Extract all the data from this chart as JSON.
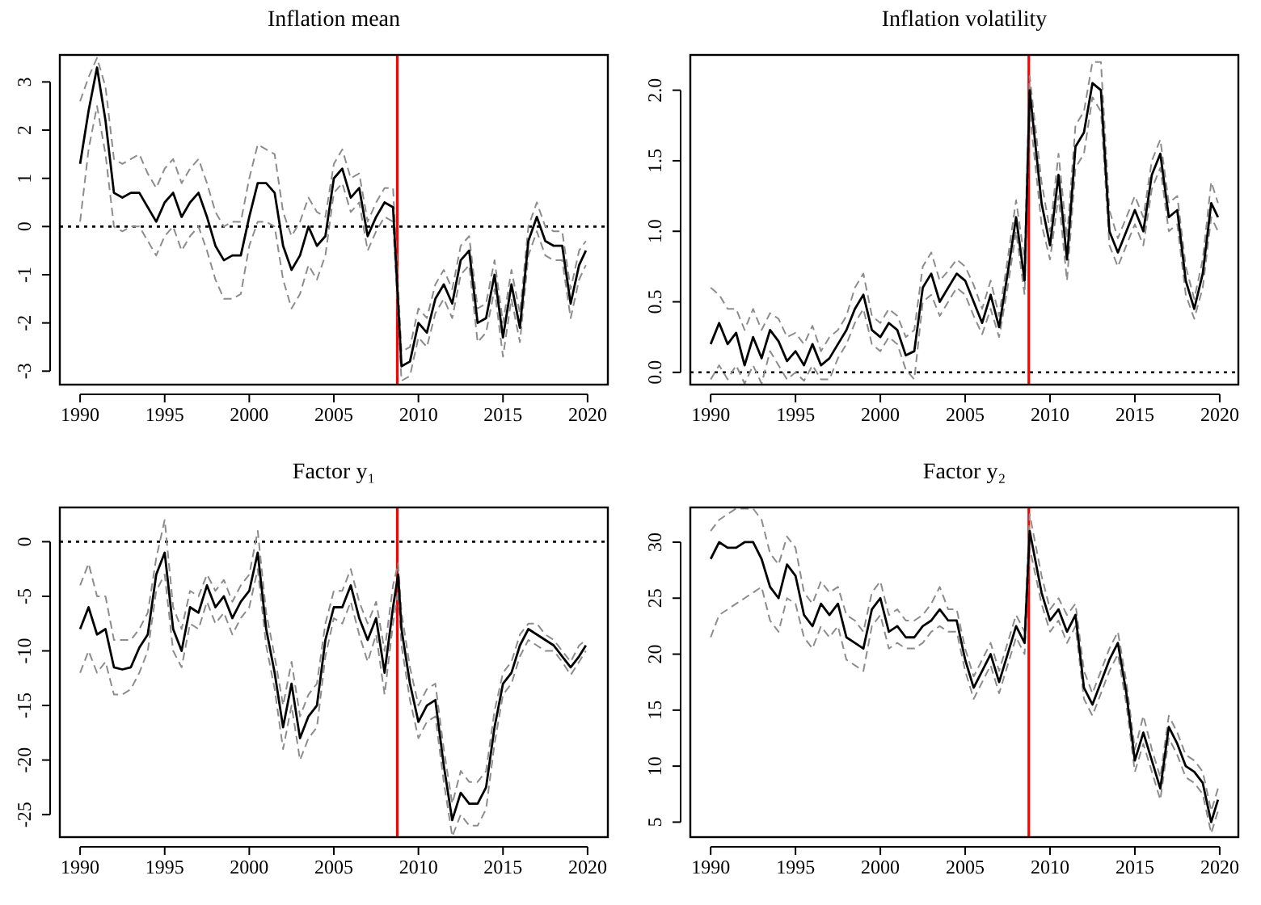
{
  "chart_data": [
    {
      "type": "line",
      "title": "Inflation mean",
      "xlim": [
        1988.8,
        2021.2
      ],
      "xticks": [
        1990,
        1995,
        2000,
        2005,
        2010,
        2015,
        2020
      ],
      "ylim": [
        -3.28,
        3.56
      ],
      "yticks": [
        -3,
        -2,
        -1,
        0,
        1,
        2,
        3
      ],
      "x": [
        1990,
        1990.5,
        1991,
        1991.5,
        1992,
        1992.5,
        1993,
        1993.5,
        1994,
        1994.5,
        1995,
        1995.5,
        1996,
        1996.5,
        1997,
        1997.5,
        1998,
        1998.5,
        1999,
        1999.5,
        2000,
        2000.5,
        2001,
        2001.5,
        2002,
        2002.5,
        2003,
        2003.5,
        2004,
        2004.5,
        2005,
        2005.5,
        2006,
        2006.5,
        2007,
        2007.5,
        2008,
        2008.5,
        2009,
        2009.5,
        2010,
        2010.5,
        2011,
        2011.5,
        2012,
        2012.5,
        2013,
        2013.5,
        2014,
        2014.5,
        2015,
        2015.5,
        2016,
        2016.5,
        2017,
        2017.5,
        2018,
        2018.5,
        2019,
        2019.5,
        2019.9
      ],
      "series": [
        {
          "color": "#8c8c8c",
          "line_style": "dashed",
          "values": [
            0.1,
            1.6,
            2.5,
            1.5,
            0.0,
            -0.1,
            0.0,
            0.0,
            -0.3,
            -0.6,
            -0.2,
            0.0,
            -0.5,
            -0.2,
            0.0,
            -0.5,
            -1.1,
            -1.5,
            -1.5,
            -1.4,
            -0.4,
            0.1,
            0.1,
            0.0,
            -1.1,
            -1.7,
            -1.4,
            -0.8,
            -1.1,
            -0.6,
            0.7,
            0.9,
            0.3,
            0.5,
            -0.5,
            -0.1,
            0.2,
            0.1,
            -3.2,
            -3.1,
            -2.3,
            -2.5,
            -1.8,
            -1.5,
            -1.9,
            -1.0,
            -0.8,
            -2.4,
            -2.2,
            -1.3,
            -2.7,
            -1.5,
            -2.4,
            -0.6,
            -0.1,
            -0.6,
            -0.7,
            -0.7,
            -1.9,
            -1.1,
            -0.8
          ]
        },
        {
          "color": "#8c8c8c",
          "line_style": "dashed",
          "values": [
            2.6,
            3.1,
            3.5,
            2.9,
            1.4,
            1.3,
            1.4,
            1.5,
            1.1,
            0.8,
            1.2,
            1.4,
            0.9,
            1.2,
            1.4,
            0.9,
            0.3,
            0.0,
            0.1,
            0.1,
            1.0,
            1.7,
            1.6,
            1.5,
            0.3,
            -0.2,
            0.1,
            0.6,
            0.3,
            0.2,
            1.3,
            1.6,
            1.0,
            1.1,
            0.1,
            0.5,
            0.8,
            0.8,
            -2.6,
            -2.5,
            -1.7,
            -1.9,
            -1.2,
            -0.9,
            -1.3,
            -0.4,
            -0.2,
            -1.7,
            -1.6,
            -0.7,
            -2.0,
            -0.9,
            -1.8,
            0.0,
            0.5,
            0.0,
            -0.1,
            -0.1,
            -1.3,
            -0.5,
            -0.3
          ]
        },
        {
          "color": "#000000",
          "line_style": "solid",
          "values": [
            1.3,
            2.4,
            3.3,
            2.2,
            0.7,
            0.6,
            0.7,
            0.7,
            0.4,
            0.1,
            0.5,
            0.7,
            0.2,
            0.5,
            0.7,
            0.2,
            -0.4,
            -0.7,
            -0.6,
            -0.6,
            0.2,
            0.9,
            0.9,
            0.7,
            -0.4,
            -0.9,
            -0.6,
            0.0,
            -0.4,
            -0.2,
            1.0,
            1.2,
            0.6,
            0.8,
            -0.2,
            0.2,
            0.5,
            0.4,
            -2.9,
            -2.8,
            -2.0,
            -2.2,
            -1.5,
            -1.2,
            -1.6,
            -0.7,
            -0.5,
            -2.0,
            -1.9,
            -1.0,
            -2.3,
            -1.2,
            -2.1,
            -0.3,
            0.2,
            -0.3,
            -0.4,
            -0.4,
            -1.6,
            -0.8,
            -0.5
          ]
        }
      ],
      "ref_lines": [
        {
          "axis": "y",
          "value": 0,
          "color": "#000000",
          "line_style": "dotted"
        },
        {
          "axis": "x",
          "value": 2008.75,
          "color": "#ff0000",
          "line_style": "solid"
        }
      ]
    },
    {
      "type": "line",
      "title": "Inflation volatility",
      "xlim": [
        1988.8,
        2021.1
      ],
      "xticks": [
        1990,
        1995,
        2000,
        2005,
        2010,
        2015,
        2020
      ],
      "ylim": [
        -0.087,
        2.25
      ],
      "yticks": [
        {
          "value": 0,
          "label": "0.0"
        },
        {
          "value": 0.5,
          "label": "0.5"
        },
        {
          "value": 1,
          "label": "1.0"
        },
        {
          "value": 1.5,
          "label": "1.5"
        },
        {
          "value": 2,
          "label": "2.0"
        }
      ],
      "x": [
        1990,
        1990.5,
        1991,
        1991.5,
        1992,
        1992.5,
        1993,
        1993.5,
        1994,
        1994.5,
        1995,
        1995.5,
        1996,
        1996.5,
        1997,
        1997.5,
        1998,
        1998.5,
        1999,
        1999.5,
        2000,
        2000.5,
        2001,
        2001.5,
        2002,
        2002.5,
        2003,
        2003.5,
        2004,
        2004.5,
        2005,
        2005.5,
        2006,
        2006.5,
        2007,
        2007.5,
        2008,
        2008.5,
        2008.8,
        2009.5,
        2010,
        2010.5,
        2011,
        2011.5,
        2012,
        2012.5,
        2013,
        2013.5,
        2014,
        2014.5,
        2015,
        2015.5,
        2016,
        2016.5,
        2017,
        2017.5,
        2018,
        2018.5,
        2019,
        2019.5,
        2019.9
      ],
      "series": [
        {
          "color": "#8c8c8c",
          "line_style": "dashed",
          "values": [
            -0.05,
            0.05,
            -0.05,
            0.05,
            -0.08,
            0.05,
            -0.08,
            0.15,
            0.05,
            -0.05,
            0.0,
            -0.06,
            0.05,
            -0.05,
            -0.05,
            0.1,
            0.2,
            0.35,
            0.45,
            0.2,
            0.15,
            0.25,
            0.2,
            0.02,
            -0.05,
            0.5,
            0.55,
            0.4,
            0.5,
            0.6,
            0.55,
            0.4,
            0.27,
            0.45,
            0.25,
            0.6,
            1.0,
            0.55,
            1.85,
            1.05,
            0.8,
            1.25,
            0.65,
            1.45,
            1.55,
            1.95,
            1.85,
            0.9,
            0.75,
            0.9,
            1.05,
            0.9,
            1.3,
            1.45,
            1.0,
            1.05,
            0.55,
            0.38,
            0.6,
            1.1,
            1.0
          ]
        },
        {
          "color": "#8c8c8c",
          "line_style": "dashed",
          "values": [
            0.6,
            0.55,
            0.45,
            0.45,
            0.3,
            0.45,
            0.3,
            0.42,
            0.38,
            0.25,
            0.28,
            0.2,
            0.33,
            0.15,
            0.25,
            0.3,
            0.4,
            0.6,
            0.7,
            0.4,
            0.35,
            0.45,
            0.4,
            0.25,
            0.3,
            0.75,
            0.85,
            0.65,
            0.72,
            0.8,
            0.75,
            0.62,
            0.45,
            0.65,
            0.4,
            0.8,
            1.22,
            0.8,
            2.1,
            1.35,
            1.0,
            1.55,
            0.95,
            1.75,
            1.85,
            2.2,
            2.2,
            1.15,
            0.95,
            1.1,
            1.25,
            1.1,
            1.5,
            1.65,
            1.2,
            1.25,
            0.75,
            0.52,
            0.8,
            1.35,
            1.2
          ]
        },
        {
          "color": "#000000",
          "line_style": "solid",
          "values": [
            0.2,
            0.35,
            0.2,
            0.28,
            0.05,
            0.25,
            0.1,
            0.3,
            0.22,
            0.08,
            0.15,
            0.05,
            0.2,
            0.05,
            0.1,
            0.2,
            0.3,
            0.45,
            0.55,
            0.3,
            0.25,
            0.35,
            0.3,
            0.12,
            0.15,
            0.6,
            0.7,
            0.5,
            0.6,
            0.7,
            0.65,
            0.5,
            0.35,
            0.55,
            0.32,
            0.7,
            1.1,
            0.65,
            2.0,
            1.2,
            0.9,
            1.4,
            0.8,
            1.6,
            1.7,
            2.05,
            2.0,
            1.0,
            0.85,
            1.0,
            1.15,
            1.0,
            1.4,
            1.55,
            1.1,
            1.15,
            0.65,
            0.45,
            0.7,
            1.2,
            1.1
          ]
        }
      ],
      "ref_lines": [
        {
          "axis": "y",
          "value": 0,
          "color": "#000000",
          "line_style": "dotted"
        },
        {
          "axis": "x",
          "value": 2008.75,
          "color": "#ff0000",
          "line_style": "solid"
        }
      ]
    },
    {
      "type": "line",
      "title": "Factor y₁",
      "xlim": [
        1988.8,
        2021.2
      ],
      "xticks": [
        1990,
        1995,
        2000,
        2005,
        2010,
        2015,
        2020
      ],
      "ylim": [
        -27.06,
        3.14
      ],
      "yticks": [
        -25,
        -20,
        -15,
        -10,
        -5,
        0
      ],
      "x": [
        1990,
        1990.5,
        1991,
        1991.5,
        1992,
        1992.5,
        1993,
        1993.5,
        1994,
        1994.5,
        1995,
        1995.5,
        1996,
        1996.5,
        1997,
        1997.5,
        1998,
        1998.5,
        1999,
        1999.5,
        2000,
        2000.5,
        2001,
        2001.5,
        2002,
        2002.5,
        2003,
        2003.5,
        2004,
        2004.5,
        2005,
        2005.5,
        2006,
        2006.5,
        2007,
        2007.5,
        2008,
        2008.5,
        2008.8,
        2009,
        2009.5,
        2010,
        2010.5,
        2011,
        2011.5,
        2012,
        2012.5,
        2013,
        2013.5,
        2014,
        2014.5,
        2015,
        2015.5,
        2016,
        2016.5,
        2017,
        2017.5,
        2018,
        2018.5,
        2019,
        2019.5,
        2019.9
      ],
      "series": [
        {
          "color": "#8c8c8c",
          "line_style": "dashed",
          "values": [
            -12,
            -10,
            -12,
            -11,
            -14,
            -14,
            -13.5,
            -12,
            -10,
            -4.5,
            -3,
            -10,
            -11.5,
            -7.5,
            -8,
            -5.5,
            -7.5,
            -6.5,
            -8.5,
            -7,
            -6,
            -2.5,
            -9.5,
            -13.5,
            -19,
            -15,
            -20,
            -18,
            -17,
            -10.5,
            -7,
            -7.5,
            -5.5,
            -8.5,
            -11,
            -8.5,
            -14,
            -7.5,
            -4.5,
            -9.5,
            -14.5,
            -18,
            -16.5,
            -16,
            -22,
            -27,
            -25,
            -26,
            -26,
            -24.5,
            -18.5,
            -14,
            -13,
            -10.5,
            -9,
            -9.5,
            -10,
            -10,
            -11,
            -12.2,
            -11,
            -10
          ]
        },
        {
          "color": "#8c8c8c",
          "line_style": "dashed",
          "values": [
            -4,
            -2,
            -5,
            -5,
            -9,
            -9,
            -9,
            -8,
            -6.5,
            -1.5,
            2,
            -6,
            -8,
            -4.5,
            -5,
            -3,
            -4.5,
            -3.5,
            -5.5,
            -4,
            -3,
            1,
            -6.5,
            -10.5,
            -15,
            -11,
            -16,
            -14,
            -13,
            -7.5,
            -4.5,
            -4.5,
            -2.5,
            -5.5,
            -7.5,
            -5.5,
            -10,
            -4,
            -2,
            -6.5,
            -11.5,
            -15,
            -13.5,
            -13,
            -19,
            -24,
            -21,
            -22,
            -22,
            -21,
            -15.5,
            -12,
            -11,
            -8.5,
            -7.5,
            -7.5,
            -8.5,
            -9,
            -10,
            -11,
            -9.5,
            -9
          ]
        },
        {
          "color": "#000000",
          "line_style": "solid",
          "values": [
            -8,
            -6,
            -8.5,
            -8,
            -11.5,
            -11.7,
            -11.5,
            -9.7,
            -8.5,
            -3,
            -1,
            -8,
            -10,
            -6,
            -6.5,
            -4,
            -6,
            -5,
            -7,
            -5.5,
            -4.5,
            -1,
            -8,
            -12,
            -17,
            -13,
            -18,
            -16,
            -15,
            -9,
            -6,
            -6,
            -4,
            -7,
            -9,
            -7,
            -12,
            -6,
            -3,
            -8,
            -13,
            -16.5,
            -15,
            -14.5,
            -20.5,
            -25.5,
            -23,
            -24,
            -24,
            -22.5,
            -17,
            -13,
            -12,
            -9.5,
            -8,
            -8.5,
            -9,
            -9.5,
            -10.5,
            -11.5,
            -10.5,
            -9.5
          ]
        }
      ],
      "ref_lines": [
        {
          "axis": "y",
          "value": 0,
          "color": "#000000",
          "line_style": "dotted"
        },
        {
          "axis": "x",
          "value": 2008.75,
          "color": "#ff0000",
          "line_style": "solid"
        }
      ]
    },
    {
      "type": "line",
      "title": "Factor y₂",
      "xlim": [
        1988.8,
        2021.1
      ],
      "xticks": [
        1990,
        1995,
        2000,
        2005,
        2010,
        2015,
        2020
      ],
      "ylim": [
        3.66,
        33.1
      ],
      "yticks": [
        5,
        10,
        15,
        20,
        25,
        30
      ],
      "x": [
        1990,
        1990.5,
        1991,
        1991.5,
        1992,
        1992.5,
        1993,
        1993.5,
        1994,
        1994.5,
        1995,
        1995.5,
        1996,
        1996.5,
        1997,
        1997.5,
        1998,
        1998.5,
        1999,
        1999.5,
        2000,
        2000.5,
        2001,
        2001.5,
        2002,
        2002.5,
        2003,
        2003.5,
        2004,
        2004.5,
        2005,
        2005.5,
        2006,
        2006.5,
        2007,
        2007.5,
        2008,
        2008.5,
        2008.8,
        2009.5,
        2010,
        2010.5,
        2011,
        2011.5,
        2012,
        2012.5,
        2013,
        2013.5,
        2014,
        2014.5,
        2015,
        2015.5,
        2016,
        2016.5,
        2017,
        2017.5,
        2018,
        2018.5,
        2019,
        2019.5,
        2019.9
      ],
      "series": [
        {
          "color": "#8c8c8c",
          "line_style": "dashed",
          "values": [
            21.5,
            23.5,
            24,
            24.5,
            25,
            25.5,
            26,
            23,
            22,
            25,
            24.5,
            21.5,
            20.5,
            22.5,
            21.5,
            22.5,
            19.5,
            19,
            18.5,
            22.5,
            23.5,
            20.5,
            21,
            20.5,
            20.5,
            21,
            22,
            22.5,
            22,
            22,
            18.5,
            16,
            17.5,
            19,
            16.5,
            19,
            21.5,
            20,
            29.5,
            24.5,
            22,
            23,
            21,
            22.5,
            16,
            14.5,
            16.5,
            18.5,
            20,
            15.5,
            9.5,
            12,
            9.5,
            7,
            12.5,
            11,
            9,
            8.5,
            7.5,
            4,
            6
          ]
        },
        {
          "color": "#8c8c8c",
          "line_style": "dashed",
          "values": [
            31,
            32,
            32.5,
            33,
            33,
            33,
            32,
            29,
            28,
            30.5,
            29.5,
            25.5,
            24.5,
            26.5,
            25.5,
            26,
            23.5,
            23,
            22,
            25.5,
            26.5,
            23.5,
            24,
            23,
            23,
            23.5,
            24.5,
            26,
            24,
            24,
            20.5,
            18,
            19.5,
            21,
            18.5,
            21,
            23.5,
            22,
            32.5,
            27,
            24,
            25,
            23.5,
            24.5,
            18.5,
            16.5,
            18.5,
            20.5,
            22,
            17.5,
            11.5,
            14.5,
            11.5,
            9,
            14.5,
            13,
            11,
            10.5,
            9.5,
            6,
            8
          ]
        },
        {
          "color": "#000000",
          "line_style": "solid",
          "values": [
            28.5,
            30,
            29.5,
            29.5,
            30,
            30,
            28.5,
            26,
            25,
            28,
            27,
            23.5,
            22.5,
            24.5,
            23.5,
            24.5,
            21.5,
            21,
            20.5,
            24,
            25,
            22,
            22.5,
            21.5,
            21.5,
            22.5,
            23,
            24,
            23,
            23,
            19.5,
            17,
            18.5,
            20,
            17.5,
            20,
            22.5,
            21,
            31,
            25.5,
            23,
            24,
            22,
            23.5,
            17,
            15.5,
            17.5,
            19.5,
            21,
            16.5,
            10.5,
            13,
            10.5,
            8,
            13.5,
            12,
            10,
            9.5,
            8.5,
            5,
            7
          ]
        }
      ],
      "ref_lines": [
        {
          "axis": "x",
          "value": 2008.75,
          "color": "#ff0000",
          "line_style": "solid"
        }
      ]
    }
  ]
}
